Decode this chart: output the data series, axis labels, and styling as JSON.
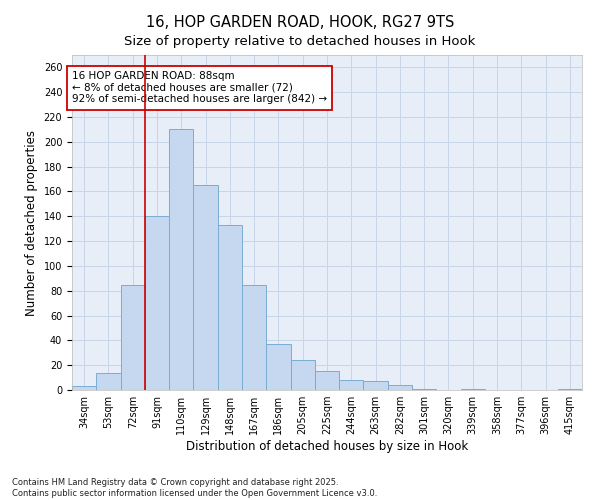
{
  "title_line1": "16, HOP GARDEN ROAD, HOOK, RG27 9TS",
  "title_line2": "Size of property relative to detached houses in Hook",
  "xlabel": "Distribution of detached houses by size in Hook",
  "ylabel": "Number of detached properties",
  "bar_labels": [
    "34sqm",
    "53sqm",
    "72sqm",
    "91sqm",
    "110sqm",
    "129sqm",
    "148sqm",
    "167sqm",
    "186sqm",
    "205sqm",
    "225sqm",
    "244sqm",
    "263sqm",
    "282sqm",
    "301sqm",
    "320sqm",
    "339sqm",
    "358sqm",
    "377sqm",
    "396sqm",
    "415sqm"
  ],
  "bar_values": [
    3,
    14,
    85,
    140,
    210,
    165,
    133,
    85,
    37,
    24,
    15,
    8,
    7,
    4,
    1,
    0,
    1,
    0,
    0,
    0,
    1
  ],
  "bar_color": "#c5d8f0",
  "bar_edge_color": "#7aadd4",
  "vline_x_index": 3,
  "vline_color": "#cc0000",
  "annotation_text": "16 HOP GARDEN ROAD: 88sqm\n← 8% of detached houses are smaller (72)\n92% of semi-detached houses are larger (842) →",
  "annotation_box_color": "#ffffff",
  "annotation_box_edge": "#cc0000",
  "ylim": [
    0,
    270
  ],
  "yticks": [
    0,
    20,
    40,
    60,
    80,
    100,
    120,
    140,
    160,
    180,
    200,
    220,
    240,
    260
  ],
  "grid_color": "#c8d4e8",
  "bg_color": "#e8eef8",
  "footnote": "Contains HM Land Registry data © Crown copyright and database right 2025.\nContains public sector information licensed under the Open Government Licence v3.0.",
  "title_fontsize": 10.5,
  "subtitle_fontsize": 9.5,
  "axis_label_fontsize": 8.5,
  "tick_fontsize": 7,
  "annot_fontsize": 7.5,
  "footnote_fontsize": 6
}
